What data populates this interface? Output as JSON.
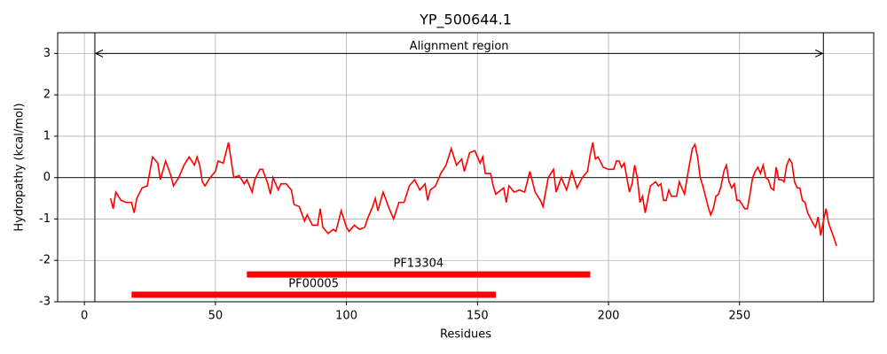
{
  "chart_data": {
    "type": "line",
    "title": "YP_500644.1",
    "x_label": "Residues",
    "y_label": "Hydropathy (kcal/mol)",
    "xlim": [
      -10.2,
      301.2
    ],
    "ylim": [
      -3,
      3.5
    ],
    "xticks": [
      0,
      50,
      100,
      150,
      200,
      250
    ],
    "yticks": [
      -3,
      -2,
      -1,
      0,
      1,
      2,
      3
    ],
    "grid": true,
    "series": [
      {
        "color": "#ff0000",
        "x": [
          10,
          11,
          12,
          14,
          16,
          18,
          19,
          20,
          22,
          24,
          26,
          28,
          29,
          31,
          33,
          34,
          36,
          38,
          40,
          42,
          43,
          44,
          45,
          46,
          48,
          50,
          51,
          53,
          55,
          57,
          59,
          61,
          62,
          64,
          65,
          67,
          68,
          70,
          71,
          72,
          74,
          75,
          77,
          79,
          80,
          82,
          84,
          85,
          87,
          89,
          90,
          91,
          93,
          95,
          96,
          98,
          100,
          101,
          103,
          105,
          107,
          108,
          110,
          111,
          112,
          114,
          116,
          118,
          120,
          122,
          124,
          126,
          128,
          130,
          131,
          132,
          134,
          136,
          138,
          140,
          142,
          144,
          145,
          147,
          149,
          151,
          152,
          153,
          155,
          156,
          157,
          158,
          160,
          161,
          162,
          164,
          166,
          168,
          170,
          172,
          174,
          175,
          177,
          179,
          180,
          182,
          184,
          186,
          188,
          190,
          192,
          193,
          194,
          195,
          196,
          198,
          200,
          202,
          203,
          204,
          205,
          206,
          208,
          209,
          210,
          211,
          212,
          213,
          214,
          216,
          218,
          219,
          220,
          221,
          222,
          223,
          224,
          226,
          227,
          229,
          230,
          231,
          232,
          233,
          234,
          235,
          236,
          238,
          239,
          240,
          241,
          242,
          243,
          244,
          245,
          246,
          247,
          248,
          249,
          250,
          252,
          253,
          254,
          255,
          256,
          257,
          258,
          259,
          260,
          261,
          262,
          263,
          264,
          265,
          266,
          267,
          268,
          269,
          270,
          271,
          272,
          273,
          274,
          275,
          276,
          278,
          279,
          280,
          281,
          282,
          283,
          284,
          286,
          287
        ],
        "values": [
          -0.5,
          -0.75,
          -0.35,
          -0.55,
          -0.6,
          -0.6,
          -0.85,
          -0.5,
          -0.25,
          -0.2,
          0.5,
          0.35,
          -0.05,
          0.4,
          0.05,
          -0.2,
          0,
          0.3,
          0.5,
          0.3,
          0.5,
          0.3,
          -0.1,
          -0.2,
          0,
          0.15,
          0.4,
          0.35,
          0.85,
          0,
          0.05,
          -0.15,
          -0.05,
          -0.35,
          -0.05,
          0.2,
          0.2,
          -0.15,
          -0.4,
          0,
          -0.3,
          -0.15,
          -0.15,
          -0.3,
          -0.65,
          -0.7,
          -1.05,
          -0.9,
          -1.15,
          -1.15,
          -0.75,
          -1.2,
          -1.35,
          -1.25,
          -1.3,
          -0.8,
          -1.2,
          -1.3,
          -1.15,
          -1.25,
          -1.2,
          -1.0,
          -0.7,
          -0.5,
          -0.8,
          -0.35,
          -0.7,
          -1.0,
          -0.6,
          -0.6,
          -0.2,
          -0.05,
          -0.3,
          -0.15,
          -0.55,
          -0.3,
          -0.2,
          0.1,
          0.3,
          0.7,
          0.3,
          0.45,
          0.15,
          0.6,
          0.65,
          0.35,
          0.5,
          0.1,
          0.1,
          -0.2,
          -0.4,
          -0.35,
          -0.25,
          -0.6,
          -0.2,
          -0.35,
          -0.3,
          -0.35,
          0.15,
          -0.35,
          -0.55,
          -0.7,
          0,
          0.2,
          -0.35,
          0,
          -0.3,
          0.15,
          -0.25,
          0,
          0.15,
          0.55,
          0.85,
          0.45,
          0.5,
          0.25,
          0.2,
          0.2,
          0.4,
          0.4,
          0.25,
          0.35,
          -0.35,
          -0.15,
          0.3,
          0,
          -0.6,
          -0.45,
          -0.85,
          -0.2,
          -0.1,
          -0.2,
          -0.15,
          -0.55,
          -0.55,
          -0.3,
          -0.45,
          -0.45,
          -0.1,
          -0.4,
          0,
          0.35,
          0.7,
          0.8,
          0.5,
          0,
          -0.2,
          -0.7,
          -0.9,
          -0.75,
          -0.45,
          -0.4,
          -0.2,
          0.15,
          0.3,
          -0.1,
          -0.25,
          -0.15,
          -0.55,
          -0.55,
          -0.75,
          -0.75,
          -0.4,
          0,
          0.15,
          0.25,
          0.1,
          0.3,
          0,
          -0.05,
          -0.25,
          -0.3,
          0.25,
          -0.05,
          -0.05,
          -0.1,
          0.3,
          0.45,
          0.35,
          -0.1,
          -0.25,
          -0.25,
          -0.55,
          -0.6,
          -0.85,
          -1.1,
          -1.2,
          -0.95,
          -1.4,
          -1.05,
          -0.75,
          -1.1,
          -1.45,
          -1.65
        ]
      }
    ],
    "region": {
      "label": "Alignment region",
      "start": 4,
      "end": 282,
      "y": 3
    },
    "domains": [
      {
        "name": "PF13304",
        "start": 62,
        "end": 193,
        "y": -2.34,
        "color": "#ff0000"
      },
      {
        "name": "PF00005",
        "start": 18,
        "end": 157,
        "y": -2.83,
        "color": "#ff0000"
      }
    ]
  }
}
